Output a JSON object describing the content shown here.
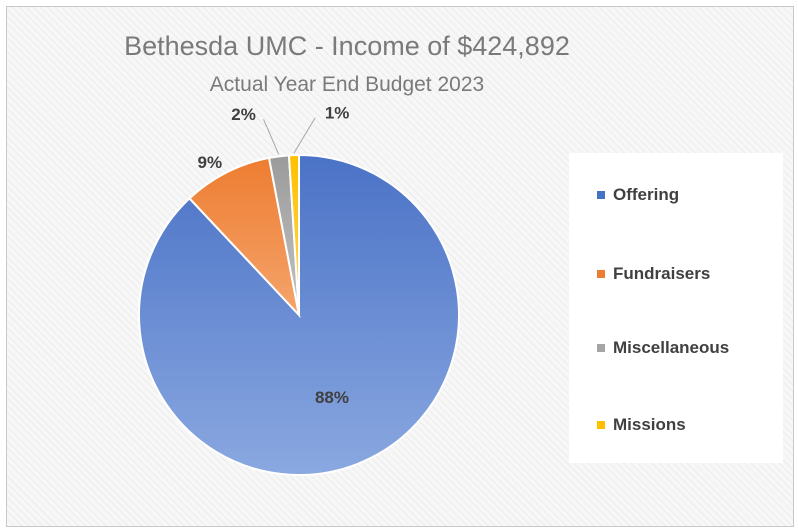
{
  "chart_data": {
    "type": "pie",
    "title": "Bethesda UMC - Income of $424,892",
    "subtitle": "Actual Year End Budget 2023",
    "categories": [
      "Offering",
      "Fundraisers",
      "Miscellaneous",
      "Missions"
    ],
    "values": [
      88,
      9,
      2,
      1
    ],
    "data_labels": [
      "88%",
      "9%",
      "2%",
      "1%"
    ],
    "colors": [
      "#4472c4",
      "#ed7d31",
      "#a5a5a5",
      "#ffc000"
    ],
    "legend_position": "right",
    "grid": false
  }
}
